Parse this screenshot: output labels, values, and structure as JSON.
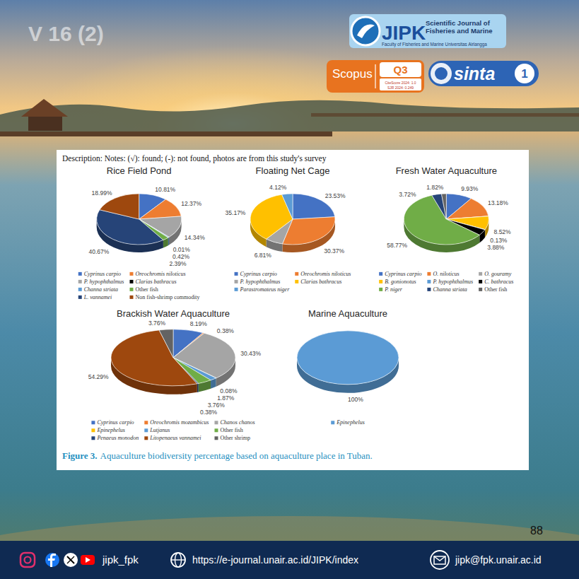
{
  "page": {
    "volume": "V 16 (2)",
    "journal": {
      "name": "JIPK",
      "subtitle": "Scientific Journal of Fisheries and Marine",
      "faculty": "Faculty of Fisheries and Marine Universitas Airlangga"
    },
    "scopus": {
      "name": "Scopus",
      "quartile": "Q3",
      "citescore": "CiteScore 2024: 1.0",
      "sjr": "SJR 2024: 0.249"
    },
    "sinta": {
      "name": "sinta",
      "rank": "1"
    },
    "page_number": "88",
    "footer": {
      "social": "jipk_fpk",
      "website": "https://e-journal.unair.ac.id/JIPK/index",
      "email": "jipk@fpk.unair.ac.id"
    }
  },
  "figure": {
    "note": "Description: Notes: (√): found; (-): not found, photos are from this study's survey",
    "caption_label": "Figure 3.",
    "caption": "Aquaculture biodiversity percentage based on aquaculture place in Tuban."
  },
  "chart_data": [
    {
      "type": "pie",
      "title": "Rice Field Pond",
      "categories": [
        "Cyprinus carpio",
        "Oreochromis niloticus",
        "P. hypophthalmus",
        "Clarias bathracus",
        "Channa striata",
        "Other fish",
        "L. vannamei",
        "Non fish-shrimp commodity"
      ],
      "values": [
        10.81,
        12.37,
        14.34,
        0.01,
        0.42,
        2.39,
        40.67,
        18.99
      ],
      "value_labels": [
        "10.81%",
        "12.37%",
        "14.34%",
        "0.01%",
        "0.42%",
        "2.39%",
        "40.67%",
        "18.99%"
      ],
      "colors": [
        "#4472C4",
        "#ED7D31",
        "#A5A5A5",
        "#000000",
        "#5B9BD5",
        "#70AD47",
        "#264478",
        "#9E480E"
      ],
      "data_labels": true,
      "legend": "bottom"
    },
    {
      "type": "pie",
      "title": "Floating Net Cage",
      "categories": [
        "Cyprinus carpio",
        "Oreochromis niloticus",
        "P. hypophthalmus",
        "Clarias bathracus",
        "Parastromateus niger"
      ],
      "values": [
        23.53,
        30.37,
        6.81,
        35.17,
        4.12
      ],
      "value_labels": [
        "23.53%",
        "30.37%",
        "6.81%",
        "35.17%",
        "4.12%"
      ],
      "colors": [
        "#4472C4",
        "#ED7D31",
        "#A5A5A5",
        "#FFC000",
        "#5B9BD5"
      ],
      "data_labels": true,
      "legend": "bottom"
    },
    {
      "type": "pie",
      "title": "Fresh Water Aquaculture",
      "categories": [
        "Cyprinus carpio",
        "O. niloticus",
        "O. gouramy",
        "B. gonionotus",
        "P. hypophthalmus",
        "C. bathracus",
        "P. niger",
        "Channa striata",
        "Other fish"
      ],
      "values": [
        9.93,
        13.18,
        0.05,
        8.52,
        0.13,
        3.88,
        58.77,
        3.72,
        1.82
      ],
      "value_labels": [
        "9.93%",
        "13.18%",
        null,
        "8.52%",
        "0.13%",
        "3.88%",
        "58.77%",
        "3.72%",
        "1.82%"
      ],
      "colors": [
        "#4472C4",
        "#ED7D31",
        "#A5A5A5",
        "#FFC000",
        "#5B9BD5",
        "#000000",
        "#70AD47",
        "#264478",
        "#636363"
      ],
      "data_labels": true,
      "legend": "bottom"
    },
    {
      "type": "pie",
      "title": "Brackish Water Aquaculture",
      "categories": [
        "Cyprinus carpio",
        "Oreochromis mozambicus",
        "Chanos chanos",
        "Epinephelus",
        "Lutjanus",
        "Other fish",
        "Penaeus monodon",
        "Litopenaeus vannamei",
        "Other shrimp"
      ],
      "values": [
        8.19,
        0.38,
        30.43,
        0.08,
        1.87,
        3.76,
        0.38,
        54.29,
        3.76
      ],
      "value_labels": [
        "8.19%",
        "0.38%",
        "30.43%",
        "0.08%",
        "1.87%",
        "3.76%",
        "0.38%",
        "54.29%",
        "3.76%"
      ],
      "colors": [
        "#4472C4",
        "#ED7D31",
        "#A5A5A5",
        "#FFC000",
        "#5B9BD5",
        "#70AD47",
        "#264478",
        "#9E480E",
        "#636363"
      ],
      "data_labels": true,
      "legend": "bottom"
    },
    {
      "type": "pie",
      "title": "Marine Aquaculture",
      "categories": [
        "Epinephelus"
      ],
      "values": [
        100
      ],
      "value_labels": [
        "100%"
      ],
      "colors": [
        "#5B9BD5"
      ],
      "data_labels": true,
      "legend": "bottom"
    }
  ]
}
